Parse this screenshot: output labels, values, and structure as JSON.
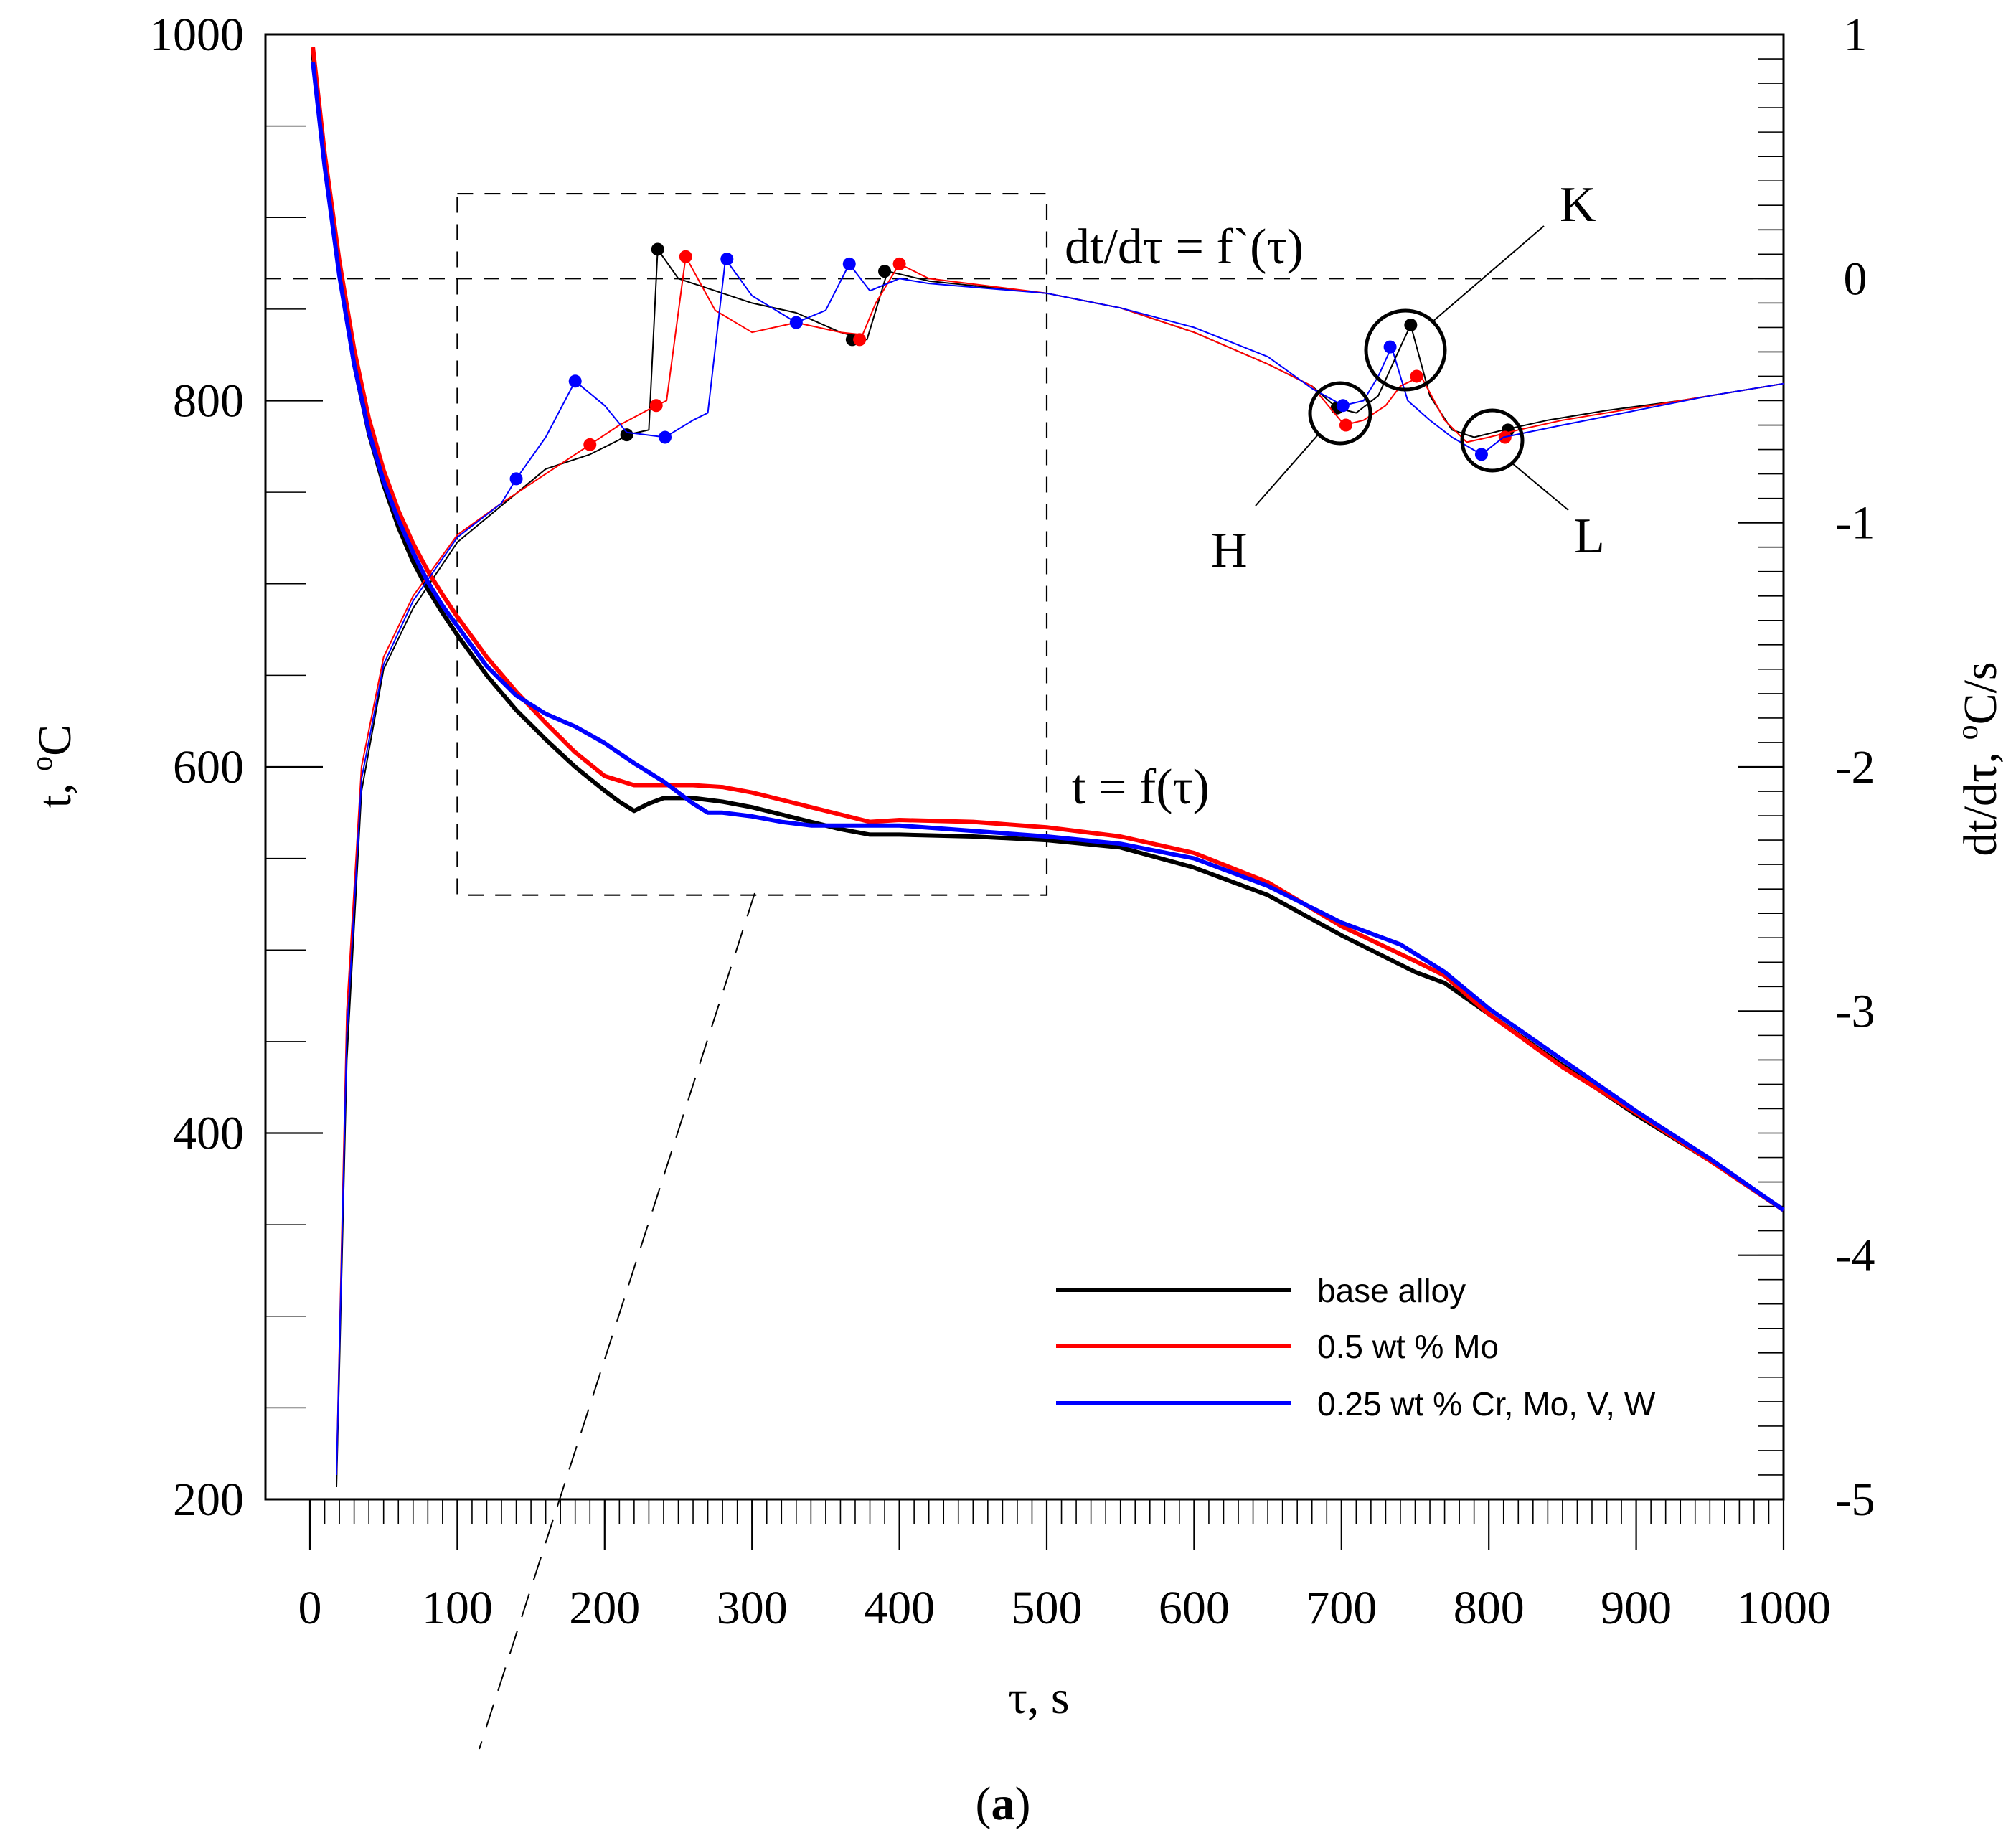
{
  "chart_data": {
    "type": "line",
    "panel_label_open": "(",
    "panel_label_letter": "a",
    "panel_label_close": ")",
    "xlabel": "τ, s",
    "ylabel_left": "t, °C",
    "ylabel_left_unit": "t, ",
    "ylabel_left_sup": "o",
    "ylabel_left_tail": "C",
    "ylabel_right_prefix": "dt/dτ, ",
    "ylabel_right_sup": "o",
    "ylabel_right_tail": "C/s",
    "xlim": [
      0,
      1000
    ],
    "ylim_left": [
      200,
      1000
    ],
    "ylim_right": [
      -5,
      1
    ],
    "x_ticks": [
      0,
      100,
      200,
      300,
      400,
      500,
      600,
      700,
      800,
      900,
      1000
    ],
    "y_left_ticks": [
      200,
      400,
      600,
      800,
      1000
    ],
    "y_right_ticks": [
      -5,
      -4,
      -3,
      -2,
      -1,
      0,
      1
    ],
    "y_right_tick_labels": [
      "-5",
      "-4",
      "-3",
      "-2",
      "-1",
      "0",
      "1"
    ],
    "annotations": {
      "derivative_curve": "dt/dτ = f`(τ)",
      "temperature_curve": "t = f(τ)",
      "point_H": "H",
      "point_K": "K",
      "point_L": "L"
    },
    "zoom_box": {
      "x_range": [
        100,
        500
      ],
      "y_left_range": [
        530,
        913
      ]
    },
    "zero_line_value": 0,
    "legend": [
      "base alloy",
      "0.5 wt % Mo",
      "0.25 wt % Cr, Mo, V, W"
    ],
    "colors": [
      "#000000",
      "#ff0000",
      "#0000ff"
    ],
    "series": [
      {
        "name": "base alloy",
        "cooling_curve": [
          [
            2,
            990
          ],
          [
            10,
            930
          ],
          [
            20,
            870
          ],
          [
            30,
            820
          ],
          [
            40,
            782
          ],
          [
            50,
            754
          ],
          [
            60,
            731
          ],
          [
            70,
            712
          ],
          [
            80,
            697
          ],
          [
            90,
            684
          ],
          [
            100,
            672
          ],
          [
            120,
            650
          ],
          [
            140,
            631
          ],
          [
            160,
            615
          ],
          [
            180,
            600
          ],
          [
            200,
            587
          ],
          [
            210,
            581
          ],
          [
            220,
            576
          ],
          [
            230,
            580
          ],
          [
            240,
            583
          ],
          [
            260,
            583
          ],
          [
            280,
            581
          ],
          [
            300,
            578
          ],
          [
            320,
            574
          ],
          [
            340,
            570
          ],
          [
            360,
            566
          ],
          [
            380,
            563
          ],
          [
            400,
            563
          ],
          [
            450,
            562
          ],
          [
            500,
            560
          ],
          [
            550,
            556
          ],
          [
            600,
            545
          ],
          [
            650,
            530
          ],
          [
            700,
            508
          ],
          [
            750,
            488
          ],
          [
            770,
            482
          ],
          [
            800,
            465
          ],
          [
            850,
            437
          ],
          [
            900,
            410
          ],
          [
            950,
            385
          ],
          [
            1000,
            358
          ]
        ],
        "derivative_curve": [
          [
            18,
            -4.95
          ],
          [
            25,
            -3.2
          ],
          [
            35,
            -2.1
          ],
          [
            50,
            -1.6
          ],
          [
            70,
            -1.35
          ],
          [
            100,
            -1.08
          ],
          [
            130,
            -0.93
          ],
          [
            160,
            -0.78
          ],
          [
            190,
            -0.72
          ],
          [
            210,
            -0.66
          ],
          [
            215,
            -0.64
          ],
          [
            230,
            -0.62
          ],
          [
            236,
            0.12
          ],
          [
            250,
            0.0
          ],
          [
            275,
            -0.05
          ],
          [
            300,
            -0.1
          ],
          [
            330,
            -0.14
          ],
          [
            360,
            -0.22
          ],
          [
            378,
            -0.25
          ],
          [
            392,
            0.03
          ],
          [
            420,
            -0.01
          ],
          [
            500,
            -0.06
          ],
          [
            550,
            -0.12
          ],
          [
            600,
            -0.22
          ],
          [
            650,
            -0.35
          ],
          [
            680,
            -0.44
          ],
          [
            697,
            -0.53
          ],
          [
            710,
            -0.55
          ],
          [
            725,
            -0.48
          ],
          [
            740,
            -0.28
          ],
          [
            747,
            -0.19
          ],
          [
            760,
            -0.48
          ],
          [
            775,
            -0.62
          ],
          [
            790,
            -0.65
          ],
          [
            810,
            -0.62
          ],
          [
            840,
            -0.58
          ],
          [
            880,
            -0.54
          ],
          [
            930,
            -0.5
          ],
          [
            970,
            -0.46
          ],
          [
            1000,
            -0.43
          ]
        ],
        "derivative_markers": [
          [
            215,
            -0.64
          ],
          [
            236,
            0.12
          ],
          [
            368,
            -0.25
          ],
          [
            390,
            0.03
          ],
          [
            697,
            -0.53
          ],
          [
            747,
            -0.19
          ],
          [
            813,
            -0.62
          ]
        ]
      },
      {
        "name": "0.5 wt % Mo",
        "cooling_curve": [
          [
            2,
            993
          ],
          [
            10,
            935
          ],
          [
            20,
            876
          ],
          [
            30,
            828
          ],
          [
            40,
            790
          ],
          [
            50,
            762
          ],
          [
            60,
            740
          ],
          [
            70,
            722
          ],
          [
            80,
            707
          ],
          [
            90,
            694
          ],
          [
            100,
            682
          ],
          [
            120,
            660
          ],
          [
            140,
            641
          ],
          [
            160,
            624
          ],
          [
            180,
            608
          ],
          [
            200,
            595
          ],
          [
            220,
            590
          ],
          [
            240,
            590
          ],
          [
            260,
            590
          ],
          [
            280,
            589
          ],
          [
            300,
            586
          ],
          [
            320,
            582
          ],
          [
            340,
            578
          ],
          [
            360,
            574
          ],
          [
            380,
            570
          ],
          [
            400,
            571
          ],
          [
            450,
            570
          ],
          [
            500,
            567
          ],
          [
            550,
            562
          ],
          [
            600,
            553
          ],
          [
            650,
            537
          ],
          [
            700,
            513
          ],
          [
            750,
            494
          ],
          [
            770,
            486
          ],
          [
            800,
            465
          ],
          [
            850,
            436
          ],
          [
            900,
            411
          ],
          [
            950,
            385
          ],
          [
            1000,
            358
          ]
        ],
        "derivative_curve": [
          [
            18,
            -4.9
          ],
          [
            25,
            -3.0
          ],
          [
            35,
            -2.0
          ],
          [
            50,
            -1.55
          ],
          [
            70,
            -1.3
          ],
          [
            100,
            -1.05
          ],
          [
            130,
            -0.92
          ],
          [
            160,
            -0.8
          ],
          [
            190,
            -0.68
          ],
          [
            210,
            -0.6
          ],
          [
            235,
            -0.52
          ],
          [
            242,
            -0.5
          ],
          [
            255,
            0.09
          ],
          [
            275,
            -0.13
          ],
          [
            300,
            -0.22
          ],
          [
            330,
            -0.18
          ],
          [
            360,
            -0.22
          ],
          [
            375,
            -0.23
          ],
          [
            384,
            -0.1
          ],
          [
            400,
            0.06
          ],
          [
            420,
            0.0
          ],
          [
            500,
            -0.06
          ],
          [
            550,
            -0.12
          ],
          [
            600,
            -0.22
          ],
          [
            650,
            -0.35
          ],
          [
            680,
            -0.44
          ],
          [
            702,
            -0.6
          ],
          [
            715,
            -0.58
          ],
          [
            730,
            -0.52
          ],
          [
            740,
            -0.44
          ],
          [
            754,
            -0.4
          ],
          [
            770,
            -0.58
          ],
          [
            785,
            -0.67
          ],
          [
            800,
            -0.65
          ],
          [
            820,
            -0.62
          ],
          [
            850,
            -0.58
          ],
          [
            900,
            -0.53
          ],
          [
            950,
            -0.48
          ],
          [
            1000,
            -0.43
          ]
        ],
        "derivative_markers": [
          [
            190,
            -0.68
          ],
          [
            235,
            -0.52
          ],
          [
            255,
            0.09
          ],
          [
            373,
            -0.25
          ],
          [
            400,
            0.06
          ],
          [
            703,
            -0.6
          ],
          [
            751,
            -0.4
          ],
          [
            811,
            -0.65
          ]
        ]
      },
      {
        "name": "0.25 wt % Cr, Mo, V, W",
        "cooling_curve": [
          [
            2,
            985
          ],
          [
            10,
            928
          ],
          [
            20,
            868
          ],
          [
            30,
            820
          ],
          [
            40,
            783
          ],
          [
            50,
            756
          ],
          [
            60,
            735
          ],
          [
            70,
            717
          ],
          [
            80,
            701
          ],
          [
            90,
            688
          ],
          [
            100,
            677
          ],
          [
            120,
            655
          ],
          [
            140,
            639
          ],
          [
            160,
            629
          ],
          [
            180,
            622
          ],
          [
            200,
            613
          ],
          [
            220,
            602
          ],
          [
            240,
            592
          ],
          [
            260,
            580
          ],
          [
            270,
            575
          ],
          [
            280,
            575
          ],
          [
            300,
            573
          ],
          [
            320,
            570
          ],
          [
            340,
            568
          ],
          [
            360,
            568
          ],
          [
            400,
            568
          ],
          [
            450,
            565
          ],
          [
            500,
            562
          ],
          [
            550,
            558
          ],
          [
            600,
            550
          ],
          [
            650,
            535
          ],
          [
            700,
            515
          ],
          [
            740,
            503
          ],
          [
            770,
            488
          ],
          [
            800,
            468
          ],
          [
            850,
            440
          ],
          [
            900,
            412
          ],
          [
            950,
            386
          ],
          [
            1000,
            358
          ]
        ],
        "derivative_curve": [
          [
            18,
            -4.9
          ],
          [
            25,
            -3.1
          ],
          [
            35,
            -2.05
          ],
          [
            50,
            -1.58
          ],
          [
            70,
            -1.32
          ],
          [
            100,
            -1.06
          ],
          [
            130,
            -0.92
          ],
          [
            140,
            -0.82
          ],
          [
            160,
            -0.65
          ],
          [
            180,
            -0.42
          ],
          [
            200,
            -0.52
          ],
          [
            215,
            -0.63
          ],
          [
            241,
            -0.65
          ],
          [
            260,
            -0.58
          ],
          [
            270,
            -0.55
          ],
          [
            282,
            0.08
          ],
          [
            300,
            -0.07
          ],
          [
            330,
            -0.18
          ],
          [
            350,
            -0.13
          ],
          [
            366,
            0.06
          ],
          [
            380,
            -0.05
          ],
          [
            400,
            0.0
          ],
          [
            420,
            -0.02
          ],
          [
            500,
            -0.06
          ],
          [
            550,
            -0.12
          ],
          [
            600,
            -0.2
          ],
          [
            650,
            -0.32
          ],
          [
            680,
            -0.45
          ],
          [
            701,
            -0.52
          ],
          [
            715,
            -0.5
          ],
          [
            725,
            -0.4
          ],
          [
            734,
            -0.28
          ],
          [
            745,
            -0.5
          ],
          [
            760,
            -0.58
          ],
          [
            775,
            -0.65
          ],
          [
            795,
            -0.72
          ],
          [
            810,
            -0.65
          ],
          [
            850,
            -0.6
          ],
          [
            900,
            -0.54
          ],
          [
            950,
            -0.48
          ],
          [
            1000,
            -0.43
          ]
        ],
        "derivative_markers": [
          [
            140,
            -0.82
          ],
          [
            180,
            -0.42
          ],
          [
            241,
            -0.65
          ],
          [
            283,
            0.08
          ],
          [
            330,
            -0.18
          ],
          [
            366,
            0.06
          ],
          [
            701,
            -0.52
          ],
          [
            733,
            -0.28
          ],
          [
            795,
            -0.72
          ]
        ]
      }
    ]
  }
}
